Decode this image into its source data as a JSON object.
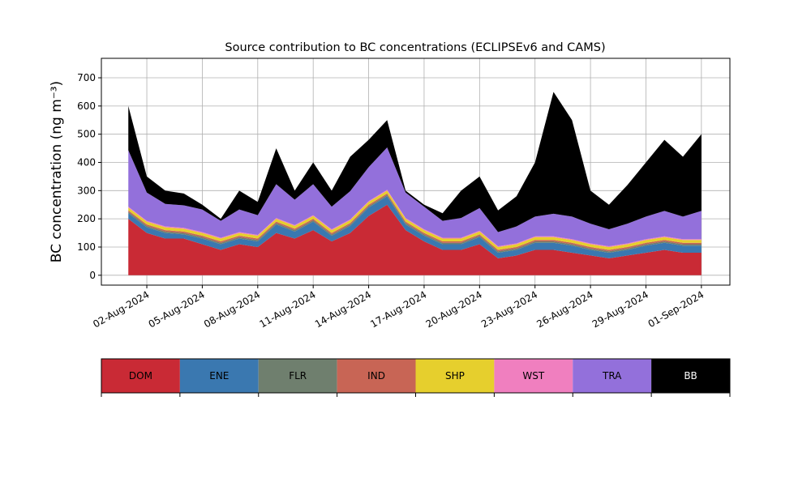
{
  "chart_data": {
    "type": "stacked_area",
    "title": "Source contribution to BC concentrations (ECLIPSEv6 and CAMS)",
    "y_label": "BC concentration (ng m⁻³)",
    "x": [
      "2024-08-01",
      "2024-08-02",
      "2024-08-03",
      "2024-08-04",
      "2024-08-05",
      "2024-08-06",
      "2024-08-07",
      "2024-08-08",
      "2024-08-09",
      "2024-08-10",
      "2024-08-11",
      "2024-08-12",
      "2024-08-13",
      "2024-08-14",
      "2024-08-15",
      "2024-08-16",
      "2024-08-17",
      "2024-08-18",
      "2024-08-19",
      "2024-08-20",
      "2024-08-21",
      "2024-08-22",
      "2024-08-23",
      "2024-08-24",
      "2024-08-25",
      "2024-08-26",
      "2024-08-27",
      "2024-08-28",
      "2024-08-29",
      "2024-08-30",
      "2024-08-31",
      "2024-09-01"
    ],
    "series": [
      {
        "name": "DOM",
        "color": "#c92a35",
        "values": [
          200,
          150,
          130,
          130,
          110,
          90,
          110,
          100,
          150,
          130,
          160,
          120,
          150,
          210,
          250,
          160,
          120,
          90,
          90,
          110,
          60,
          70,
          90,
          90,
          80,
          70,
          60,
          70,
          80,
          90,
          80,
          80
        ]
      },
      {
        "name": "ENE",
        "color": "#3a78b0",
        "values": [
          20,
          20,
          20,
          15,
          20,
          20,
          20,
          20,
          30,
          25,
          30,
          20,
          25,
          30,
          30,
          20,
          20,
          20,
          20,
          25,
          20,
          20,
          25,
          25,
          25,
          20,
          20,
          20,
          25,
          25,
          25,
          25
        ]
      },
      {
        "name": "FLR",
        "color": "#6f7f6e",
        "values": [
          5,
          5,
          5,
          5,
          5,
          5,
          5,
          5,
          5,
          5,
          5,
          5,
          5,
          5,
          5,
          5,
          5,
          5,
          5,
          5,
          5,
          5,
          5,
          5,
          5,
          5,
          5,
          5,
          5,
          5,
          5,
          5
        ]
      },
      {
        "name": "IND",
        "color": "#c86555",
        "values": [
          5,
          5,
          5,
          5,
          5,
          5,
          5,
          5,
          5,
          5,
          5,
          5,
          5,
          5,
          5,
          5,
          5,
          5,
          5,
          5,
          5,
          5,
          5,
          5,
          5,
          5,
          5,
          5,
          5,
          5,
          5,
          5
        ]
      },
      {
        "name": "SHP",
        "color": "#e6cf2d",
        "values": [
          10,
          10,
          10,
          10,
          10,
          10,
          10,
          10,
          10,
          10,
          10,
          10,
          10,
          10,
          10,
          10,
          10,
          10,
          10,
          10,
          10,
          10,
          10,
          10,
          10,
          10,
          10,
          10,
          10,
          10,
          10,
          10
        ]
      },
      {
        "name": "WST",
        "color": "#f07fbf",
        "values": [
          3,
          3,
          3,
          3,
          3,
          3,
          3,
          3,
          3,
          3,
          3,
          3,
          3,
          3,
          3,
          3,
          3,
          3,
          3,
          3,
          3,
          3,
          3,
          3,
          3,
          3,
          3,
          3,
          3,
          3,
          3,
          3
        ]
      },
      {
        "name": "TRA",
        "color": "#9370db",
        "values": [
          200,
          100,
          80,
          80,
          80,
          60,
          80,
          70,
          120,
          90,
          110,
          80,
          100,
          120,
          150,
          90,
          80,
          60,
          70,
          80,
          50,
          60,
          70,
          80,
          80,
          70,
          60,
          70,
          80,
          90,
          80,
          100
        ]
      },
      {
        "name": "BB",
        "color": "#000000",
        "values": [
          157,
          57,
          47,
          42,
          17,
          7,
          67,
          47,
          127,
          32,
          77,
          57,
          122,
          97,
          97,
          7,
          7,
          27,
          97,
          112,
          77,
          107,
          192,
          432,
          342,
          117,
          87,
          137,
          192,
          252,
          212,
          272
        ]
      }
    ],
    "xlim": [
      "2024-07-30T13:00:00Z",
      "2024-09-02T13:00:00Z"
    ],
    "xticks": [
      {
        "value": "2024-08-02",
        "label": "02-Aug-2024"
      },
      {
        "value": "2024-08-05",
        "label": "05-Aug-2024"
      },
      {
        "value": "2024-08-08",
        "label": "08-Aug-2024"
      },
      {
        "value": "2024-08-11",
        "label": "11-Aug-2024"
      },
      {
        "value": "2024-08-14",
        "label": "14-Aug-2024"
      },
      {
        "value": "2024-08-17",
        "label": "17-Aug-2024"
      },
      {
        "value": "2024-08-20",
        "label": "20-Aug-2024"
      },
      {
        "value": "2024-08-23",
        "label": "23-Aug-2024"
      },
      {
        "value": "2024-08-26",
        "label": "26-Aug-2024"
      },
      {
        "value": "2024-08-29",
        "label": "29-Aug-2024"
      },
      {
        "value": "2024-09-01",
        "label": "01-Sep-2024"
      }
    ],
    "ylim": [
      -35,
      769
    ],
    "yticks": [
      0,
      100,
      200,
      300,
      400,
      500,
      600,
      700
    ],
    "grid": true
  }
}
